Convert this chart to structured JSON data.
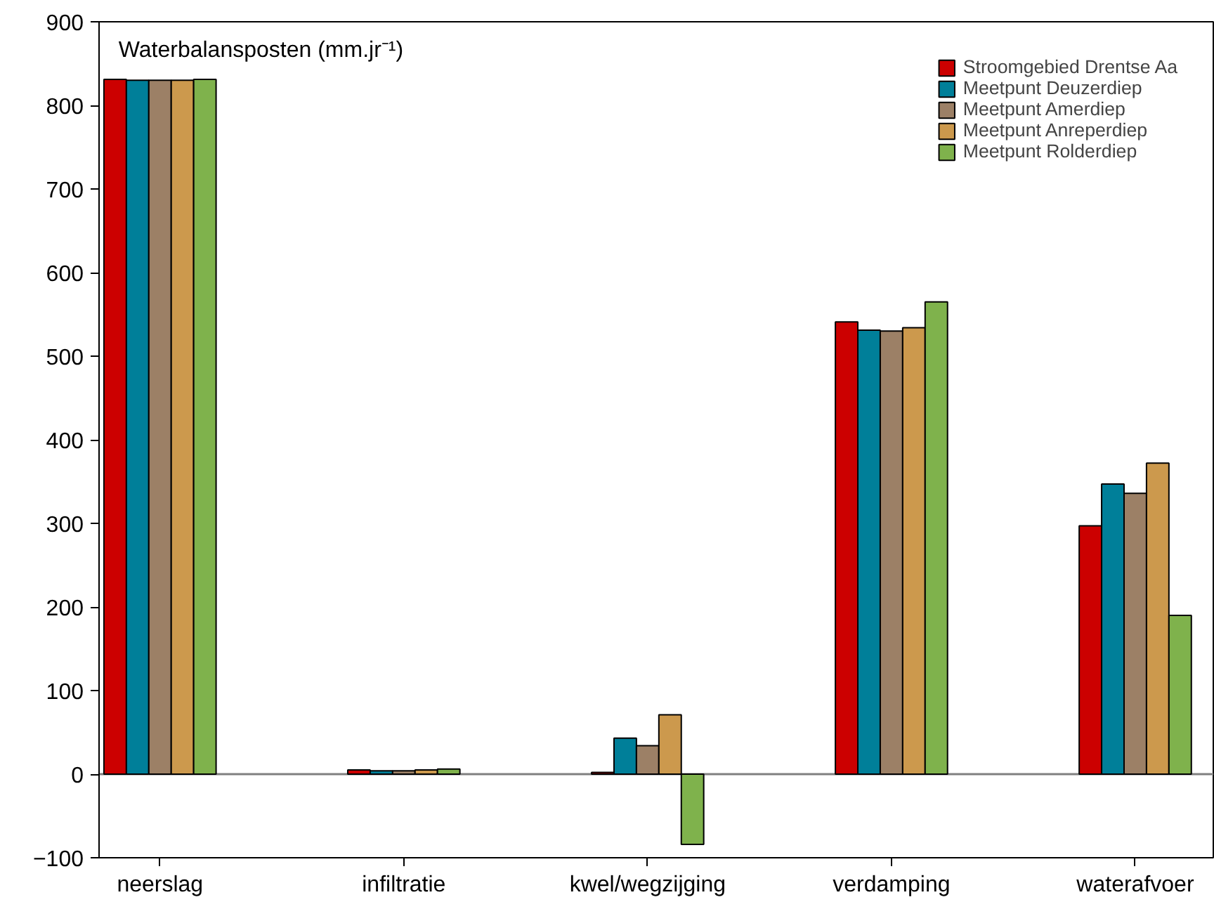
{
  "chart_data": {
    "type": "bar",
    "ylabel": "Waterbalansposten (mm.jr⁻¹)",
    "categories": [
      "neerslag",
      "infiltratie",
      "kwel/wegzijging",
      "verdamping",
      "waterafvoer"
    ],
    "series": [
      {
        "name": "Stroomgebied Drentse Aa",
        "color": "#cc0000",
        "values": [
          831,
          5,
          2,
          541,
          297
        ]
      },
      {
        "name": "Meetpunt Deuzerdiep",
        "color": "#007f99",
        "values": [
          830,
          4,
          43,
          531,
          347
        ]
      },
      {
        "name": "Meetpunt Amerdiep",
        "color": "#9c8066",
        "values": [
          830,
          4,
          34,
          530,
          336
        ]
      },
      {
        "name": "Meetpunt Anreperdiep",
        "color": "#cc994d",
        "values": [
          830,
          5,
          71,
          534,
          372
        ]
      },
      {
        "name": "Meetpunt Rolderdiep",
        "color": "#7fb24c",
        "values": [
          831,
          6,
          -84,
          565,
          190
        ]
      }
    ],
    "ylim": [
      -100,
      900
    ],
    "yticks": [
      -100,
      0,
      100,
      200,
      300,
      400,
      500,
      600,
      700,
      800,
      900
    ],
    "ref_lines": [
      {
        "axis": "y",
        "value": 0,
        "color": "#808080"
      }
    ],
    "grid": false,
    "legend": "top right"
  }
}
